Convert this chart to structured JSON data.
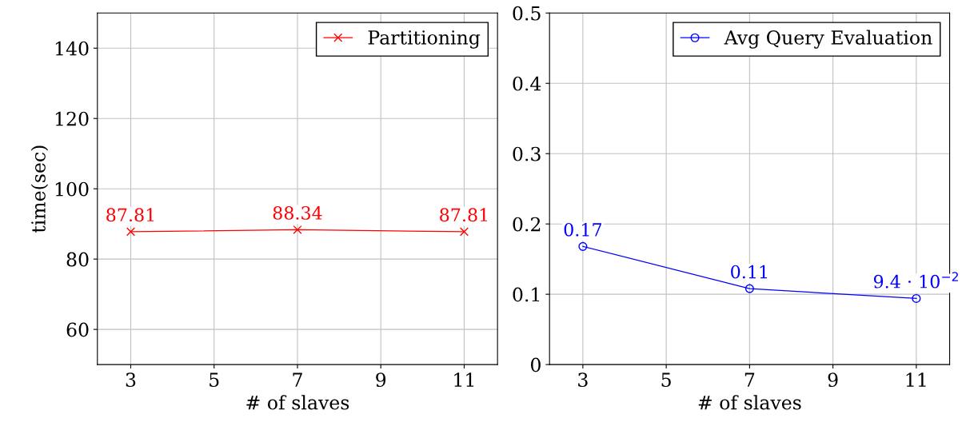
{
  "chart_data": [
    {
      "type": "line",
      "ylabel": "time(sec)",
      "xlabel": "# of slaves",
      "x": [
        3,
        7,
        11
      ],
      "xlim": [
        2.2,
        11.8
      ],
      "xticks": [
        3,
        5,
        7,
        9,
        11
      ],
      "ylim": [
        50,
        150
      ],
      "yticks": [
        60,
        80,
        100,
        120,
        140
      ],
      "grid": true,
      "legend": "top right",
      "marker": "cross",
      "line_style": "solid",
      "series": [
        {
          "name": "Partitioning",
          "color": "#ff0000",
          "values": [
            87.81,
            88.34,
            87.81
          ],
          "value_labels": [
            "87.81",
            "88.34",
            "87.81"
          ]
        }
      ]
    },
    {
      "type": "line",
      "xlabel": "# of slaves",
      "x": [
        3,
        7,
        11
      ],
      "xlim": [
        2.2,
        11.8
      ],
      "xticks": [
        3,
        5,
        7,
        9,
        11
      ],
      "ylim": [
        0,
        0.5
      ],
      "yticks": [
        0,
        0.1,
        0.2,
        0.3,
        0.4,
        0.5
      ],
      "grid": true,
      "legend": "top right",
      "marker": "circle",
      "line_style": "solid",
      "series": [
        {
          "name": "Avg Query Evaluation",
          "color": "#0000ff",
          "values": [
            0.168,
            0.108,
            0.094
          ],
          "value_labels": [
            "0.17",
            "0.11",
            "9.4 · 10$^{−2}$"
          ]
        }
      ]
    }
  ]
}
